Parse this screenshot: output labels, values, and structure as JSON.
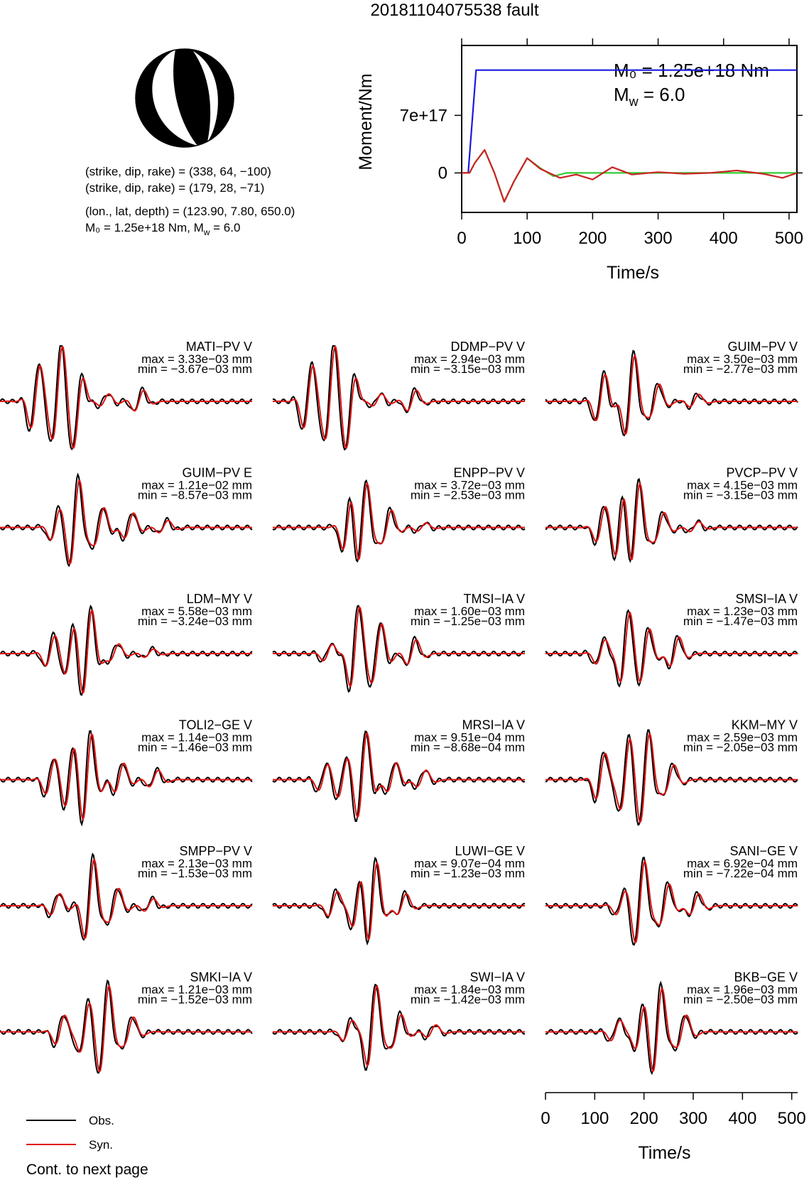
{
  "page_title": "20181104075538 fault",
  "mechanism": {
    "line1": "(strike, dip, rake) = (338, 64, −100)",
    "line2": "(strike, dip, rake) = (179, 28, −71)",
    "line3": "(lon., lat, depth) = (123.90, 7.80, 650.0)",
    "line4_m0": "M₀ = 1.25e+18 Nm, M",
    "line4_mw": " = 6.0",
    "mw_sub": "w"
  },
  "colors": {
    "obs": "#000000",
    "syn": "#e01010",
    "moment": "#1a1ae0",
    "rate_green": "#33cc33",
    "rate_red": "#cc2222"
  },
  "chart_data": [
    {
      "type": "line",
      "title": "",
      "xlabel": "Time/s",
      "ylabel": "Moment/Nm",
      "xlim": [
        0,
        512
      ],
      "ylim": [
        -4.8e+17,
        1.55e+18
      ],
      "xticks": [
        "0",
        "100",
        "200",
        "300",
        "400",
        "500"
      ],
      "xtick_values": [
        0,
        100,
        200,
        300,
        400,
        500
      ],
      "yticks": [
        "0",
        "7e+17"
      ],
      "ytick_values": [
        0,
        7e+17
      ],
      "annotation_m0": "M₀ = 1.25e+18 Nm",
      "annotation_mw": "M",
      "annotation_mw_sub": "w",
      "annotation_mw_val": " = 6.0",
      "series": [
        {
          "color": "#1a1ae0",
          "x": [
            0,
            10,
            22,
            512
          ],
          "y": [
            0,
            0,
            1.25e+18,
            1.25e+18
          ]
        },
        {
          "color": "#33cc33",
          "x": [
            0,
            12,
            20,
            35,
            50,
            65,
            80,
            100,
            120,
            140,
            160,
            512
          ],
          "y": [
            0,
            0,
            1.2e+17,
            2.8e+17,
            0,
            -3.5e+17,
            -1e+17,
            1.8e+17,
            6e+16,
            -4e+16,
            0,
            0
          ]
        },
        {
          "color": "#cc2222",
          "x": [
            0,
            12,
            20,
            35,
            50,
            65,
            80,
            100,
            120,
            150,
            175,
            200,
            230,
            260,
            300,
            340,
            380,
            420,
            460,
            490,
            512
          ],
          "y": [
            0,
            0,
            1.2e+17,
            2.8e+17,
            0,
            -3.5e+17,
            -1e+17,
            1.8e+17,
            5e+16,
            -6e+16,
            -2e+16,
            -8e+16,
            7e+16,
            -2e+16,
            1e+16,
            -1e+16,
            0,
            3e+16,
            -1e+16,
            -6e+16,
            0
          ]
        }
      ]
    },
    {
      "type": "line",
      "title": "",
      "xlabel": "Time/s",
      "xlim": [
        0,
        512
      ],
      "xticks": [
        "0",
        "100",
        "200",
        "300",
        "400",
        "500"
      ],
      "xtick_values": [
        0,
        100,
        200,
        300,
        400,
        500
      ],
      "legend": {
        "obs": "Obs.",
        "syn": "Syn.",
        "placement": "bottom-left"
      },
      "footer": "Cont. to next page",
      "traces": [
        {
          "name": "MATI−PV V",
          "max": "max = 3.33e−03 mm",
          "min": "min = −3.67e−03 mm",
          "peaks": [
            [
              70,
              0.75,
              0.6
            ],
            [
              115,
              0.92,
              0.95
            ],
            [
              155,
              0.7,
              -0.9
            ],
            [
              210,
              0.15,
              0.18
            ],
            [
              280,
              0.25,
              0.1
            ]
          ]
        },
        {
          "name": "DDMP−PV V",
          "max": "max = 2.94e−03 mm",
          "min": "min = −3.15e−03 mm",
          "peaks": [
            [
              70,
              0.75,
              0.6
            ],
            [
              115,
              0.92,
              0.95
            ],
            [
              155,
              0.7,
              -0.9
            ],
            [
              210,
              0.15,
              0.18
            ],
            [
              280,
              0.25,
              0.1
            ]
          ]
        },
        {
          "name": "GUIM−PV V",
          "max": "max = 3.50e−03 mm",
          "min": "min = −2.77e−03 mm",
          "peaks": [
            [
              110,
              0.55,
              0.5
            ],
            [
              170,
              0.95,
              0.85
            ],
            [
              220,
              0.35,
              0.3
            ],
            [
              300,
              0.15,
              0.1
            ]
          ]
        },
        {
          "name": "GUIM−PV E",
          "max": "max = 1.21e−02 mm",
          "min": "min = −8.57e−03 mm",
          "peaks": [
            [
              110,
              0.35,
              0.3
            ],
            [
              150,
              0.95,
              1.0
            ],
            [
              200,
              0.4,
              0.35
            ],
            [
              260,
              0.3,
              0.25
            ],
            [
              330,
              0.15,
              0.12
            ]
          ]
        },
        {
          "name": "ENPP−PV V",
          "max": "max = 3.72e−03 mm",
          "min": "min = −2.53e−03 mm",
          "peaks": [
            [
              150,
              0.6,
              0.5
            ],
            [
              180,
              0.95,
              0.9
            ],
            [
              230,
              0.35,
              0.3
            ],
            [
              300,
              0.1,
              0.05
            ]
          ]
        },
        {
          "name": "PVCP−PV V",
          "max": "max = 4.15e−03 mm",
          "min": "min = −3.15e−03 mm",
          "peaks": [
            [
              110,
              0.4,
              0.35
            ],
            [
              150,
              0.65,
              0.6
            ],
            [
              180,
              0.95,
              0.9
            ],
            [
              230,
              0.3,
              0.25
            ],
            [
              300,
              0.12,
              0.1
            ]
          ]
        },
        {
          "name": "LDM−MY V",
          "max": "max = 5.58e−03 mm",
          "min": "min = −3.24e−03 mm",
          "peaks": [
            [
              100,
              0.35,
              0.3
            ],
            [
              140,
              0.45,
              0.4
            ],
            [
              175,
              0.95,
              0.6
            ],
            [
              230,
              0.2,
              0.15
            ],
            [
              300,
              0.1,
              0.05
            ]
          ]
        },
        {
          "name": "TMSI−IA V",
          "max": "max = 1.60e−03 mm",
          "min": "min = −1.25e−03 mm",
          "peaks": [
            [
              110,
              0.2,
              0.15
            ],
            [
              165,
              0.95,
              0.9
            ],
            [
              210,
              0.6,
              0.55
            ],
            [
              280,
              0.3,
              0.2
            ]
          ]
        },
        {
          "name": "SMSI−IA V",
          "max": "max = 1.23e−03 mm",
          "min": "min = −1.47e−03 mm",
          "peaks": [
            [
              110,
              0.3,
              0.25
            ],
            [
              160,
              0.8,
              0.85
            ],
            [
              200,
              0.5,
              0.45
            ],
            [
              260,
              0.35,
              0.25
            ]
          ]
        },
        {
          "name": "TOLI2−GE V",
          "max": "max = 1.14e−03 mm",
          "min": "min = −1.46e−03 mm",
          "peaks": [
            [
              100,
              0.4,
              0.35
            ],
            [
              140,
              0.6,
              0.55
            ],
            [
              175,
              0.95,
              0.85
            ],
            [
              240,
              0.35,
              0.25
            ],
            [
              310,
              0.2,
              0.15
            ]
          ]
        },
        {
          "name": "MRSI−IA V",
          "max": "max = 9.51e−04 mm",
          "min": "min = −8.68e−04 mm",
          "peaks": [
            [
              100,
              0.3,
              0.25
            ],
            [
              140,
              0.4,
              0.35
            ],
            [
              180,
              0.95,
              0.9
            ],
            [
              240,
              0.35,
              0.3
            ],
            [
              300,
              0.2,
              0.15
            ]
          ]
        },
        {
          "name": "KKM−MY V",
          "max": "max = 2.59e−03 mm",
          "min": "min = −2.05e−03 mm",
          "peaks": [
            [
              110,
              0.55,
              0.5
            ],
            [
              160,
              0.8,
              0.7
            ],
            [
              200,
              0.95,
              0.85
            ],
            [
              250,
              0.3,
              0.25
            ]
          ]
        },
        {
          "name": "SMPP−PV V",
          "max": "max = 2.13e−03 mm",
          "min": "min = −1.53e−03 mm",
          "peaks": [
            [
              110,
              0.25,
              0.2
            ],
            [
              180,
              0.95,
              0.9
            ],
            [
              230,
              0.35,
              0.3
            ],
            [
              300,
              0.15,
              0.1
            ]
          ]
        },
        {
          "name": "LUWI−GE V",
          "max": "max = 9.07e−04 mm",
          "min": "min = −1.23e−03 mm",
          "peaks": [
            [
              120,
              0.3,
              0.25
            ],
            [
              170,
              0.55,
              0.45
            ],
            [
              200,
              0.95,
              0.7
            ],
            [
              260,
              0.25,
              0.2
            ]
          ]
        },
        {
          "name": "SANI−GE V",
          "max": "max = 6.92e−04 mm",
          "min": "min = −7.22e−04 mm",
          "peaks": [
            [
              150,
              0.25,
              0.2
            ],
            [
              190,
              0.95,
              0.7
            ],
            [
              240,
              0.45,
              0.35
            ],
            [
              300,
              0.25,
              0.2
            ]
          ]
        },
        {
          "name": "SMKI−IA V",
          "max": "max = 1.21e−03 mm",
          "min": "min = −1.52e−03 mm",
          "peaks": [
            [
              120,
              0.35,
              0.3
            ],
            [
              170,
              0.55,
              0.5
            ],
            [
              210,
              0.95,
              0.85
            ],
            [
              260,
              0.3,
              0.25
            ]
          ]
        },
        {
          "name": "SWI−IA V",
          "max": "max = 1.84e−03 mm",
          "min": "min = −1.42e−03 mm",
          "peaks": [
            [
              150,
              0.25,
              0.2
            ],
            [
              200,
              0.95,
              0.85
            ],
            [
              250,
              0.35,
              0.3
            ],
            [
              320,
              0.15,
              0.1
            ]
          ]
        },
        {
          "name": "BKB−GE V",
          "max": "max = 1.96e−03 mm",
          "min": "min = −2.50e−03 mm",
          "peaks": [
            [
              140,
              0.25,
              0.2
            ],
            [
              190,
              0.45,
              0.4
            ],
            [
              225,
              0.95,
              0.6
            ],
            [
              275,
              0.35,
              0.25
            ]
          ]
        }
      ]
    }
  ]
}
